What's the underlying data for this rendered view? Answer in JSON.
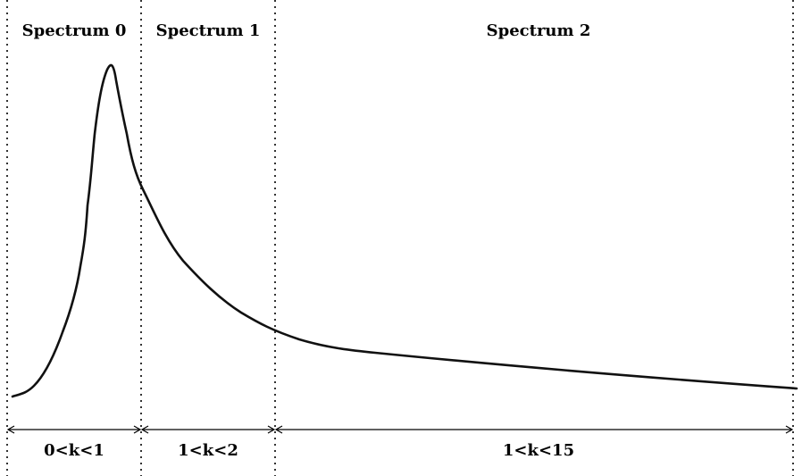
{
  "spectra": [
    {
      "title": "Spectrum 0",
      "range": "0<k<1"
    },
    {
      "title": "Spectrum 1",
      "range": "1<k<2"
    },
    {
      "title": "Spectrum 2",
      "range": "1<k<15"
    }
  ],
  "colors": {
    "curve": "#111111",
    "divider": "#333333",
    "arrow": "#000000"
  }
}
